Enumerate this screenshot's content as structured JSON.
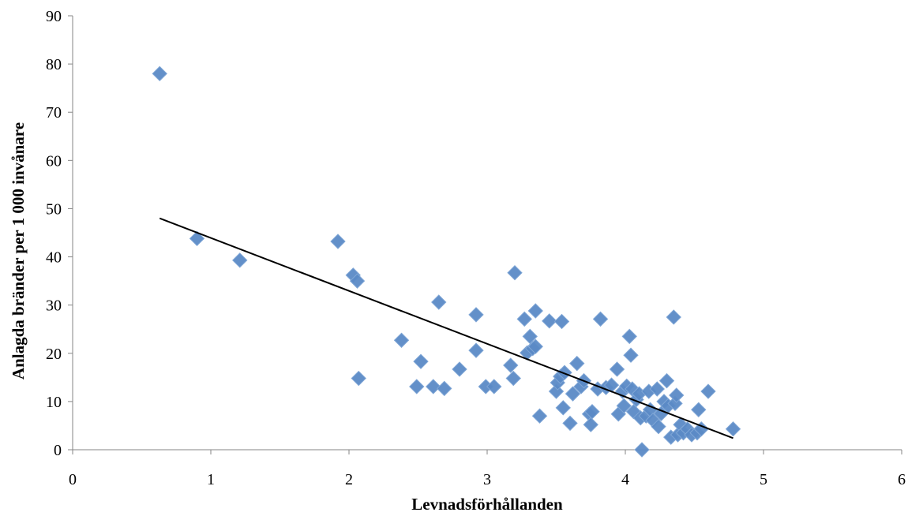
{
  "chart_data": {
    "type": "scatter",
    "title": "",
    "xlabel": "Levnadsförhållanden",
    "ylabel": "Anlagda bränder per 1 000 invånare",
    "xlim": [
      0,
      6
    ],
    "ylim": [
      0,
      90
    ],
    "xticks": [
      0,
      1,
      2,
      3,
      4,
      5,
      6
    ],
    "yticks": [
      0,
      10,
      20,
      30,
      40,
      50,
      60,
      70,
      80,
      90
    ],
    "grid": false,
    "legend": "none",
    "marker": "diamond",
    "marker_color": "#5B8AC6",
    "trendline": {
      "type": "linear",
      "x": [
        0.63,
        4.78
      ],
      "y": [
        48.0,
        2.4
      ],
      "color": "#000000"
    },
    "points": [
      {
        "x": 0.63,
        "y": 78.0
      },
      {
        "x": 0.9,
        "y": 43.8
      },
      {
        "x": 1.21,
        "y": 39.3
      },
      {
        "x": 1.92,
        "y": 43.2
      },
      {
        "x": 2.03,
        "y": 36.2
      },
      {
        "x": 2.06,
        "y": 35.0
      },
      {
        "x": 2.07,
        "y": 14.8
      },
      {
        "x": 2.38,
        "y": 22.7
      },
      {
        "x": 2.49,
        "y": 13.1
      },
      {
        "x": 2.52,
        "y": 18.3
      },
      {
        "x": 2.61,
        "y": 13.1
      },
      {
        "x": 2.65,
        "y": 30.6
      },
      {
        "x": 2.69,
        "y": 12.7
      },
      {
        "x": 2.8,
        "y": 16.7
      },
      {
        "x": 2.92,
        "y": 20.6
      },
      {
        "x": 2.92,
        "y": 28.0
      },
      {
        "x": 2.99,
        "y": 13.1
      },
      {
        "x": 3.05,
        "y": 13.1
      },
      {
        "x": 3.17,
        "y": 17.5
      },
      {
        "x": 3.19,
        "y": 14.8
      },
      {
        "x": 3.2,
        "y": 36.7
      },
      {
        "x": 3.27,
        "y": 27.1
      },
      {
        "x": 3.29,
        "y": 20.1
      },
      {
        "x": 3.31,
        "y": 23.5
      },
      {
        "x": 3.33,
        "y": 21.0
      },
      {
        "x": 3.35,
        "y": 21.4
      },
      {
        "x": 3.35,
        "y": 28.8
      },
      {
        "x": 3.38,
        "y": 7.0
      },
      {
        "x": 3.45,
        "y": 26.7
      },
      {
        "x": 3.5,
        "y": 12.1
      },
      {
        "x": 3.51,
        "y": 13.9
      },
      {
        "x": 3.53,
        "y": 15.2
      },
      {
        "x": 3.54,
        "y": 26.6
      },
      {
        "x": 3.55,
        "y": 8.7
      },
      {
        "x": 3.56,
        "y": 16.0
      },
      {
        "x": 3.6,
        "y": 5.5
      },
      {
        "x": 3.62,
        "y": 11.6
      },
      {
        "x": 3.65,
        "y": 17.9
      },
      {
        "x": 3.68,
        "y": 13.1
      },
      {
        "x": 3.7,
        "y": 14.3
      },
      {
        "x": 3.74,
        "y": 7.4
      },
      {
        "x": 3.75,
        "y": 5.2
      },
      {
        "x": 3.76,
        "y": 7.9
      },
      {
        "x": 3.8,
        "y": 12.6
      },
      {
        "x": 3.82,
        "y": 27.1
      },
      {
        "x": 3.86,
        "y": 12.9
      },
      {
        "x": 3.9,
        "y": 13.4
      },
      {
        "x": 3.94,
        "y": 16.7
      },
      {
        "x": 3.95,
        "y": 7.4
      },
      {
        "x": 3.98,
        "y": 12.1
      },
      {
        "x": 3.99,
        "y": 9.1
      },
      {
        "x": 4.01,
        "y": 13.2
      },
      {
        "x": 4.03,
        "y": 23.5
      },
      {
        "x": 4.04,
        "y": 19.6
      },
      {
        "x": 4.05,
        "y": 12.6
      },
      {
        "x": 4.06,
        "y": 7.9
      },
      {
        "x": 4.08,
        "y": 10.4
      },
      {
        "x": 4.1,
        "y": 11.6
      },
      {
        "x": 4.11,
        "y": 6.6
      },
      {
        "x": 4.12,
        "y": 0.0
      },
      {
        "x": 4.15,
        "y": 7.0
      },
      {
        "x": 4.17,
        "y": 12.1
      },
      {
        "x": 4.18,
        "y": 8.3
      },
      {
        "x": 4.2,
        "y": 6.1
      },
      {
        "x": 4.23,
        "y": 12.6
      },
      {
        "x": 4.24,
        "y": 4.8
      },
      {
        "x": 4.26,
        "y": 7.5
      },
      {
        "x": 4.28,
        "y": 10.0
      },
      {
        "x": 4.3,
        "y": 14.3
      },
      {
        "x": 4.31,
        "y": 9.1
      },
      {
        "x": 4.33,
        "y": 2.6
      },
      {
        "x": 4.35,
        "y": 27.5
      },
      {
        "x": 4.36,
        "y": 9.6
      },
      {
        "x": 4.37,
        "y": 11.3
      },
      {
        "x": 4.38,
        "y": 3.1
      },
      {
        "x": 4.4,
        "y": 5.2
      },
      {
        "x": 4.42,
        "y": 3.5
      },
      {
        "x": 4.45,
        "y": 4.3
      },
      {
        "x": 4.48,
        "y": 3.1
      },
      {
        "x": 4.52,
        "y": 3.5
      },
      {
        "x": 4.53,
        "y": 8.3
      },
      {
        "x": 4.55,
        "y": 4.3
      },
      {
        "x": 4.6,
        "y": 12.1
      },
      {
        "x": 4.78,
        "y": 4.3
      }
    ]
  }
}
